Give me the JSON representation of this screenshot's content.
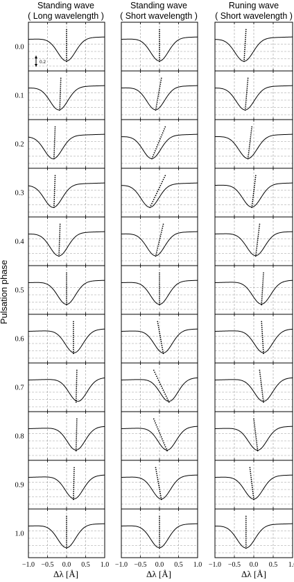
{
  "chart_data": {
    "type": "line",
    "ylabel": "Pulsation phase",
    "xlabel": "Δλ [Å]",
    "xlim": [
      -1.0,
      1.0
    ],
    "x_ticks": [
      "−1.0",
      "−0.5",
      "0.0",
      "0.5",
      "1.0"
    ],
    "phases": [
      "0.0",
      "0.1",
      "0.2",
      "0.3",
      "0.4",
      "0.5",
      "0.6",
      "0.7",
      "0.8",
      "0.9",
      "1.0"
    ],
    "scale_label": "0.2",
    "grid": true,
    "columns": [
      {
        "title_line1": "Standing wave",
        "title_line2": "( Long wavelength )",
        "line_center": [
          0.0,
          -0.2,
          -0.35,
          -0.35,
          -0.2,
          0.0,
          0.2,
          0.3,
          0.25,
          0.2,
          0.0
        ],
        "bisector_top": [
          0.0,
          -0.15,
          -0.3,
          -0.3,
          -0.17,
          0.0,
          0.18,
          0.27,
          0.27,
          0.2,
          0.0
        ],
        "bisector_bottom": [
          0.0,
          -0.18,
          -0.33,
          -0.33,
          -0.2,
          0.0,
          0.18,
          0.25,
          0.25,
          0.18,
          0.0
        ]
      },
      {
        "title_line1": "Standing wave",
        "title_line2": "( Short wavelength )",
        "line_center": [
          0.0,
          -0.1,
          -0.2,
          -0.25,
          -0.1,
          0.0,
          0.1,
          0.25,
          0.2,
          0.05,
          0.0
        ],
        "bisector_top": [
          0.0,
          0.05,
          0.15,
          0.15,
          0.1,
          0.0,
          -0.05,
          -0.15,
          -0.15,
          -0.1,
          0.0
        ],
        "bisector_bottom": [
          0.0,
          -0.1,
          -0.2,
          -0.25,
          -0.1,
          0.0,
          0.1,
          0.25,
          0.2,
          0.05,
          0.0
        ]
      },
      {
        "title_line1": "Runing wave",
        "title_line2": "( Short wavelength )",
        "line_center": [
          -0.25,
          -0.22,
          -0.15,
          -0.05,
          0.05,
          0.2,
          0.25,
          0.25,
          0.1,
          0.0,
          -0.2
        ],
        "bisector_top": [
          -0.2,
          -0.15,
          -0.05,
          0.05,
          0.15,
          0.25,
          0.2,
          0.15,
          0.0,
          -0.1,
          -0.2
        ],
        "bisector_bottom": [
          -0.25,
          -0.22,
          -0.15,
          -0.05,
          0.05,
          0.2,
          0.25,
          0.25,
          0.1,
          0.0,
          -0.2
        ]
      }
    ]
  }
}
